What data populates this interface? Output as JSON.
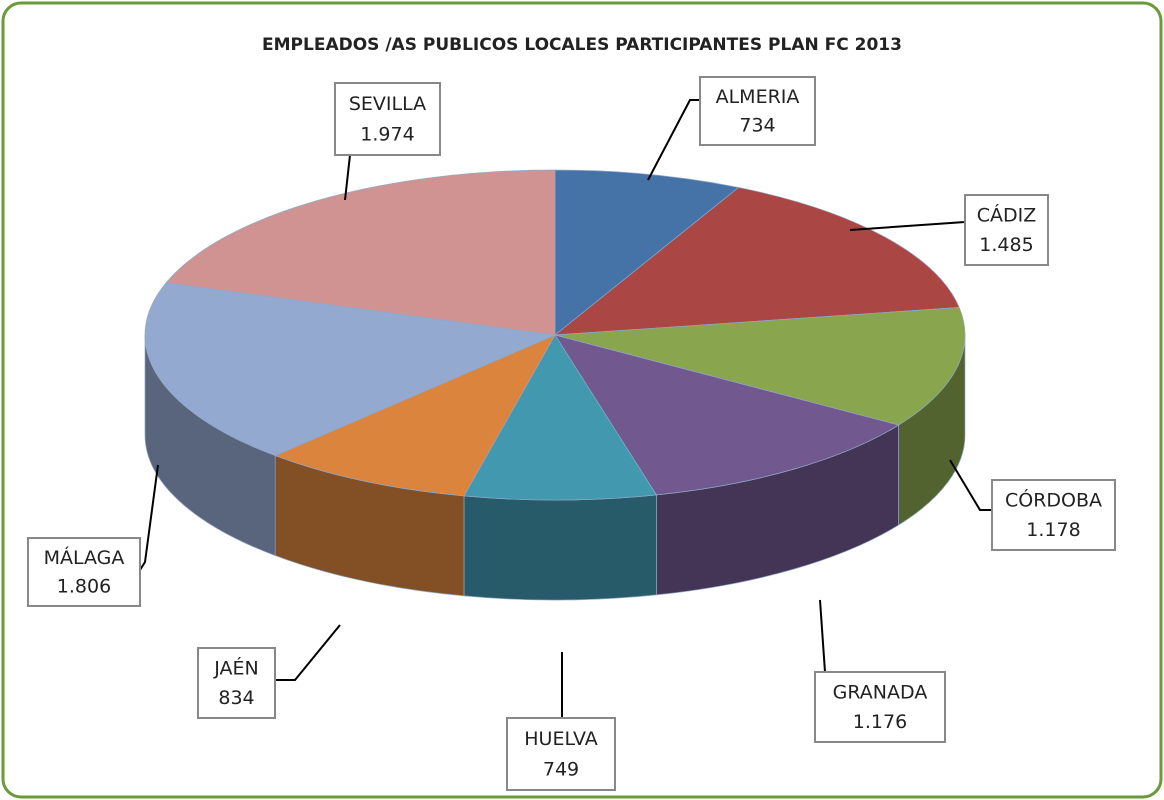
{
  "chart_data": {
    "type": "pie",
    "title": "EMPLEADOS /AS PUBLICOS LOCALES PARTICIPANTES PLAN FC 2013",
    "categories": [
      "ALMERIA",
      "CÁDIZ",
      "CÓRDOBA",
      "GRANADA",
      "HUELVA",
      "JAÉN",
      "MÁLAGA",
      "SEVILLA"
    ],
    "values": [
      734,
      1485,
      1178,
      1176,
      749,
      834,
      1806,
      1974
    ],
    "value_labels": [
      "734",
      "1.485",
      "1.178",
      "1.176",
      "749",
      "834",
      "1.806",
      "1.974"
    ],
    "colors": [
      "#4572a7",
      "#aa4643",
      "#89a54e",
      "#71588f",
      "#4198af",
      "#db843d",
      "#93a9cf",
      "#d19392"
    ]
  }
}
